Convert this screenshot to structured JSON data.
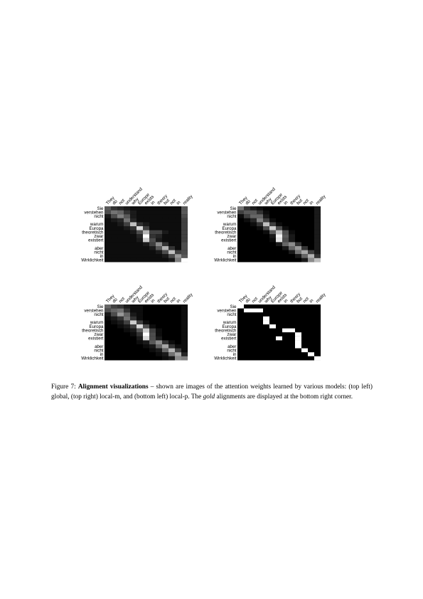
{
  "figure": {
    "source_words": [
      "They",
      "do",
      "not",
      "understand",
      "why",
      "Europe",
      "exists",
      "in",
      "theory",
      "but",
      "not",
      "in",
      "reality"
    ],
    "target_words": [
      "Sie",
      "verstehen",
      "nicht",
      "",
      "warum",
      "Europa",
      "theoretisch",
      "zwar",
      "existiert",
      "",
      "aber",
      "nicht",
      "in",
      "Wirklichkeit"
    ],
    "caption": {
      "label": "Figure 7:",
      "title": "Alignment visualizations",
      "body_before_gold": " – shown are images of the attention weights learned by various models: (top left) global, (top right) local-m, and (bottom left) local-p. The ",
      "gold_word": "gold",
      "body_after_gold": " alignments are displayed at the bottom right corner."
    }
  },
  "chart_data": [
    {
      "type": "heatmap",
      "x": [
        "They",
        "do",
        "not",
        "understand",
        "why",
        "Europe",
        "exists",
        "in",
        "theory",
        "but",
        "not",
        "in",
        "reality"
      ],
      "y": [
        "Sie",
        "verstehen",
        "nicht",
        "",
        "warum",
        "Europa",
        "theoretisch",
        "zwar",
        "existiert",
        "",
        "aber",
        "nicht",
        "in",
        "Wirklichkeit"
      ],
      "colorscale": "grayscale",
      "values": [
        [
          0.35,
          0.2,
          0.15,
          0.1,
          0.05,
          0.05,
          0.05,
          0.05,
          0.05,
          0.05,
          0.05,
          0.05,
          0.35
        ],
        [
          0.3,
          0.45,
          0.4,
          0.2,
          0.1,
          0.05,
          0.05,
          0.05,
          0.05,
          0.05,
          0.05,
          0.05,
          0.35
        ],
        [
          0.1,
          0.3,
          0.5,
          0.35,
          0.1,
          0.05,
          0.05,
          0.05,
          0.05,
          0.05,
          0.05,
          0.05,
          0.3
        ],
        [
          0.05,
          0.1,
          0.15,
          0.45,
          0.15,
          0.05,
          0.05,
          0.05,
          0.05,
          0.05,
          0.05,
          0.05,
          0.25
        ],
        [
          0.05,
          0.05,
          0.1,
          0.25,
          0.75,
          0.2,
          0.1,
          0.05,
          0.05,
          0.05,
          0.05,
          0.05,
          0.25
        ],
        [
          0.05,
          0.05,
          0.05,
          0.1,
          0.2,
          0.85,
          0.25,
          0.05,
          0.05,
          0.05,
          0.05,
          0.05,
          0.25
        ],
        [
          0.05,
          0.05,
          0.05,
          0.05,
          0.1,
          0.3,
          0.7,
          0.25,
          0.25,
          0.1,
          0.05,
          0.05,
          0.25
        ],
        [
          0.05,
          0.05,
          0.05,
          0.05,
          0.05,
          0.15,
          1.0,
          0.2,
          0.15,
          0.05,
          0.05,
          0.05,
          0.25
        ],
        [
          0.05,
          0.05,
          0.05,
          0.05,
          0.05,
          0.1,
          0.8,
          0.3,
          0.1,
          0.05,
          0.05,
          0.05,
          0.25
        ],
        [
          0.05,
          0.05,
          0.05,
          0.05,
          0.05,
          0.05,
          0.1,
          0.25,
          0.55,
          0.2,
          0.05,
          0.05,
          0.3
        ],
        [
          0.05,
          0.05,
          0.05,
          0.05,
          0.05,
          0.05,
          0.05,
          0.1,
          0.35,
          0.7,
          0.2,
          0.05,
          0.3
        ],
        [
          0.05,
          0.05,
          0.05,
          0.05,
          0.05,
          0.05,
          0.05,
          0.05,
          0.1,
          0.3,
          0.75,
          0.25,
          0.3
        ],
        [
          0.05,
          0.05,
          0.05,
          0.05,
          0.05,
          0.05,
          0.05,
          0.05,
          0.05,
          0.1,
          0.3,
          0.6,
          0.35
        ],
        [
          0.05,
          0.05,
          0.05,
          0.05,
          0.05,
          0.05,
          0.05,
          0.05,
          0.05,
          0.05,
          0.1,
          0.5,
          1.0
        ]
      ]
    },
    {
      "type": "heatmap",
      "x": [
        "They",
        "do",
        "not",
        "understand",
        "why",
        "Europe",
        "exists",
        "in",
        "theory",
        "but",
        "not",
        "in",
        "reality"
      ],
      "y": [
        "Sie",
        "verstehen",
        "nicht",
        "",
        "warum",
        "Europa",
        "theoretisch",
        "zwar",
        "existiert",
        "",
        "aber",
        "nicht",
        "in",
        "Wirklichkeit"
      ],
      "colorscale": "grayscale",
      "values": [
        [
          0.45,
          0.2,
          0.1,
          0.05,
          0.0,
          0.0,
          0.0,
          0.0,
          0.0,
          0.0,
          0.0,
          0.0,
          0.1
        ],
        [
          0.25,
          0.35,
          0.35,
          0.2,
          0.05,
          0.0,
          0.0,
          0.0,
          0.0,
          0.0,
          0.0,
          0.0,
          0.1
        ],
        [
          0.05,
          0.25,
          0.4,
          0.4,
          0.1,
          0.0,
          0.0,
          0.0,
          0.0,
          0.0,
          0.0,
          0.0,
          0.1
        ],
        [
          0.0,
          0.05,
          0.15,
          0.5,
          0.25,
          0.05,
          0.0,
          0.0,
          0.0,
          0.0,
          0.0,
          0.0,
          0.1
        ],
        [
          0.0,
          0.0,
          0.05,
          0.2,
          0.75,
          0.25,
          0.05,
          0.0,
          0.0,
          0.0,
          0.0,
          0.0,
          0.1
        ],
        [
          0.0,
          0.0,
          0.0,
          0.05,
          0.3,
          0.8,
          0.3,
          0.05,
          0.0,
          0.0,
          0.0,
          0.0,
          0.1
        ],
        [
          0.0,
          0.0,
          0.0,
          0.0,
          0.05,
          0.35,
          0.75,
          0.3,
          0.05,
          0.0,
          0.0,
          0.0,
          0.1
        ],
        [
          0.0,
          0.0,
          0.0,
          0.0,
          0.0,
          0.1,
          0.95,
          0.35,
          0.1,
          0.0,
          0.0,
          0.0,
          0.1
        ],
        [
          0.0,
          0.0,
          0.0,
          0.0,
          0.0,
          0.05,
          0.9,
          0.3,
          0.1,
          0.0,
          0.0,
          0.0,
          0.1
        ],
        [
          0.0,
          0.0,
          0.0,
          0.0,
          0.0,
          0.0,
          0.1,
          0.4,
          0.55,
          0.2,
          0.0,
          0.0,
          0.1
        ],
        [
          0.0,
          0.0,
          0.0,
          0.0,
          0.0,
          0.0,
          0.0,
          0.1,
          0.4,
          0.6,
          0.2,
          0.0,
          0.1
        ],
        [
          0.0,
          0.0,
          0.0,
          0.0,
          0.0,
          0.0,
          0.0,
          0.0,
          0.1,
          0.45,
          0.65,
          0.25,
          0.1
        ],
        [
          0.0,
          0.0,
          0.0,
          0.0,
          0.0,
          0.0,
          0.0,
          0.0,
          0.0,
          0.1,
          0.4,
          0.7,
          0.2
        ],
        [
          0.0,
          0.0,
          0.0,
          0.0,
          0.0,
          0.0,
          0.0,
          0.0,
          0.0,
          0.0,
          0.1,
          0.55,
          0.75
        ]
      ]
    },
    {
      "type": "heatmap",
      "x": [
        "They",
        "do",
        "not",
        "understand",
        "why",
        "Europe",
        "exists",
        "in",
        "theory",
        "but",
        "not",
        "in",
        "reality"
      ],
      "y": [
        "Sie",
        "verstehen",
        "nicht",
        "",
        "warum",
        "Europa",
        "theoretisch",
        "zwar",
        "existiert",
        "",
        "aber",
        "nicht",
        "in",
        "Wirklichkeit"
      ],
      "colorscale": "grayscale",
      "values": [
        [
          0.4,
          0.25,
          0.2,
          0.1,
          0.05,
          0.05,
          0.0,
          0.0,
          0.0,
          0.0,
          0.0,
          0.0,
          0.05
        ],
        [
          0.3,
          0.4,
          0.45,
          0.2,
          0.05,
          0.05,
          0.0,
          0.0,
          0.0,
          0.0,
          0.0,
          0.0,
          0.05
        ],
        [
          0.1,
          0.3,
          0.6,
          0.4,
          0.1,
          0.05,
          0.0,
          0.0,
          0.0,
          0.0,
          0.0,
          0.0,
          0.05
        ],
        [
          0.05,
          0.1,
          0.2,
          0.45,
          0.2,
          0.05,
          0.0,
          0.0,
          0.0,
          0.0,
          0.0,
          0.0,
          0.05
        ],
        [
          0.0,
          0.05,
          0.1,
          0.25,
          0.8,
          0.25,
          0.05,
          0.0,
          0.0,
          0.0,
          0.0,
          0.0,
          0.05
        ],
        [
          0.0,
          0.0,
          0.05,
          0.1,
          0.25,
          0.85,
          0.3,
          0.05,
          0.0,
          0.0,
          0.0,
          0.0,
          0.05
        ],
        [
          0.0,
          0.0,
          0.0,
          0.05,
          0.1,
          0.35,
          0.8,
          0.25,
          0.05,
          0.0,
          0.0,
          0.0,
          0.05
        ],
        [
          0.0,
          0.0,
          0.0,
          0.0,
          0.05,
          0.2,
          1.0,
          0.3,
          0.05,
          0.0,
          0.0,
          0.0,
          0.05
        ],
        [
          0.0,
          0.0,
          0.0,
          0.0,
          0.0,
          0.1,
          0.85,
          0.3,
          0.1,
          0.0,
          0.0,
          0.0,
          0.05
        ],
        [
          0.0,
          0.0,
          0.0,
          0.0,
          0.0,
          0.05,
          0.1,
          0.35,
          0.55,
          0.2,
          0.05,
          0.0,
          0.05
        ],
        [
          0.0,
          0.0,
          0.0,
          0.0,
          0.0,
          0.0,
          0.05,
          0.1,
          0.4,
          0.65,
          0.2,
          0.05,
          0.05
        ],
        [
          0.0,
          0.0,
          0.0,
          0.0,
          0.0,
          0.0,
          0.0,
          0.05,
          0.1,
          0.4,
          0.7,
          0.25,
          0.05
        ],
        [
          0.0,
          0.0,
          0.0,
          0.0,
          0.0,
          0.0,
          0.0,
          0.0,
          0.05,
          0.1,
          0.45,
          0.65,
          0.15
        ],
        [
          0.0,
          0.0,
          0.0,
          0.0,
          0.0,
          0.0,
          0.0,
          0.0,
          0.0,
          0.05,
          0.1,
          0.55,
          0.5
        ]
      ]
    },
    {
      "type": "heatmap",
      "x": [
        "They",
        "do",
        "not",
        "understand",
        "why",
        "Europe",
        "exists",
        "in",
        "theory",
        "but",
        "not",
        "in",
        "reality"
      ],
      "y": [
        "Sie",
        "verstehen",
        "nicht",
        "",
        "warum",
        "Europa",
        "theoretisch",
        "zwar",
        "existiert",
        "",
        "aber",
        "nicht",
        "in",
        "Wirklichkeit"
      ],
      "colorscale": "grayscale",
      "values": [
        [
          1,
          0,
          0,
          0,
          0,
          0,
          0,
          0,
          0,
          0,
          0,
          0,
          0
        ],
        [
          0,
          1,
          1,
          1,
          0,
          0,
          0,
          0,
          0,
          0,
          0,
          0,
          0
        ],
        [
          0,
          0,
          0,
          0,
          0,
          0,
          0,
          0,
          0,
          0,
          0,
          0,
          0
        ],
        [
          0,
          0,
          0,
          0,
          1,
          0,
          0,
          0,
          0,
          0,
          0,
          0,
          0
        ],
        [
          0,
          0,
          0,
          0,
          1,
          0,
          0,
          0,
          0,
          0,
          0,
          0,
          0
        ],
        [
          0,
          0,
          0,
          0,
          0,
          1,
          0,
          0,
          0,
          0,
          0,
          0,
          0
        ],
        [
          0,
          0,
          0,
          0,
          0,
          0,
          0,
          1,
          1,
          0,
          0,
          0,
          0
        ],
        [
          0,
          0,
          0,
          0,
          0,
          0,
          0,
          0,
          0,
          1,
          0,
          0,
          0
        ],
        [
          0,
          0,
          0,
          0,
          0,
          0,
          1,
          0,
          0,
          1,
          0,
          0,
          0
        ],
        [
          0,
          0,
          0,
          0,
          0,
          0,
          0,
          0,
          0,
          1,
          0,
          0,
          0
        ],
        [
          0,
          0,
          0,
          0,
          0,
          0,
          0,
          0,
          0,
          1,
          0,
          0,
          0
        ],
        [
          0,
          0,
          0,
          0,
          0,
          0,
          0,
          0,
          0,
          0,
          1,
          0,
          0
        ],
        [
          0,
          0,
          0,
          0,
          0,
          0,
          0,
          0,
          0,
          0,
          0,
          1,
          0
        ],
        [
          0,
          0,
          0,
          0,
          0,
          0,
          0,
          0,
          0,
          0,
          0,
          0,
          1
        ]
      ]
    }
  ]
}
